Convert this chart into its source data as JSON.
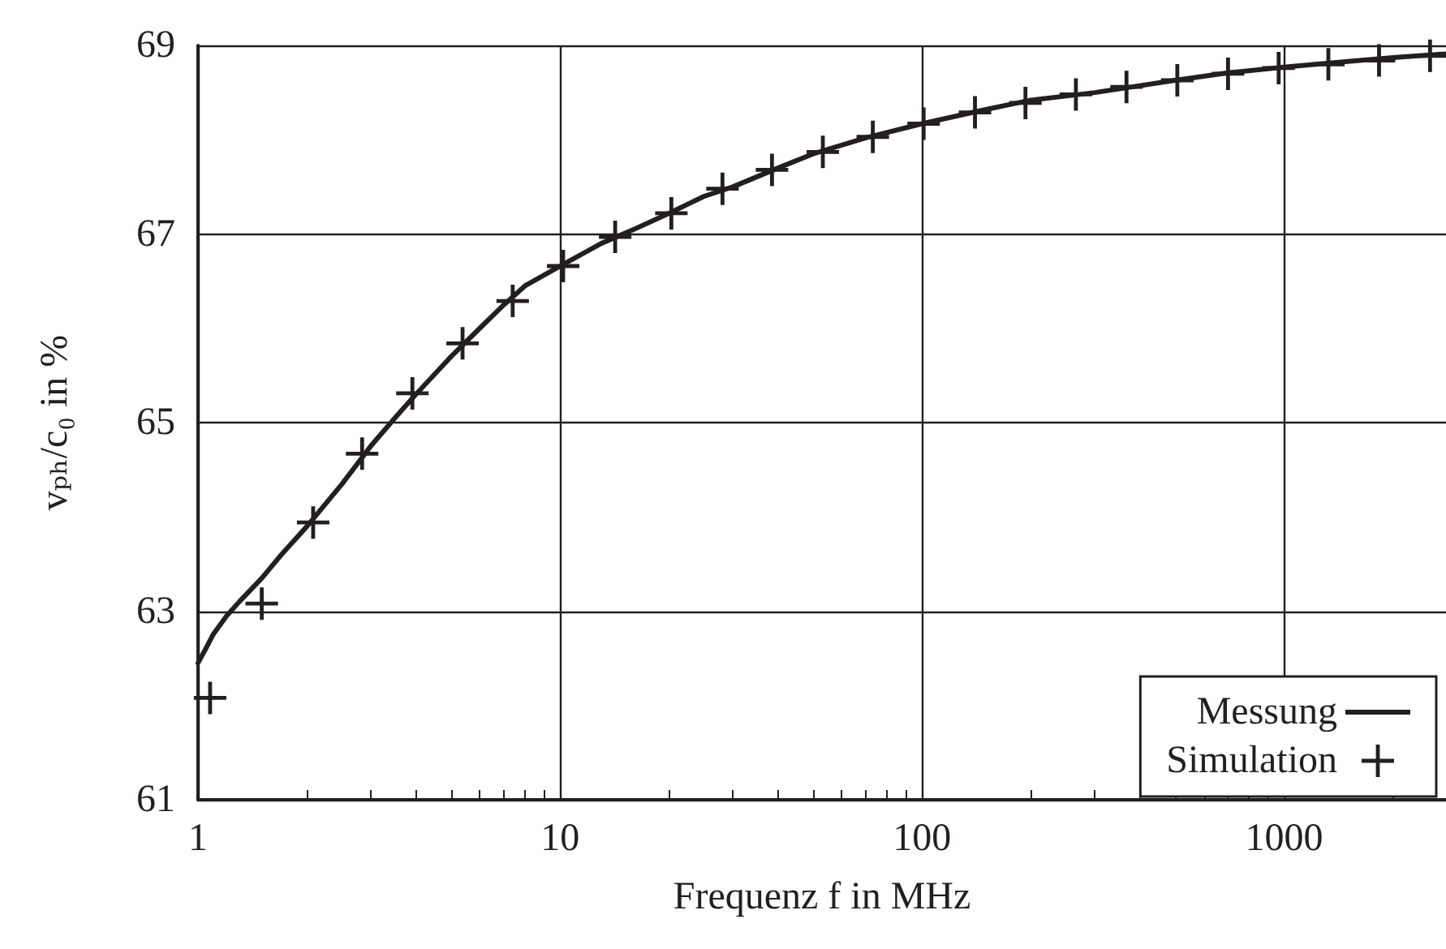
{
  "chart_data": {
    "type": "line",
    "xlabel": "Frequenz f in MHz",
    "ylabel": "vₚₕ/c₀ in %",
    "log": "x",
    "xlim": [
      1,
      2800
    ],
    "xticks": [
      1,
      10,
      100,
      1000
    ],
    "ylim": [
      61,
      69
    ],
    "yticks": [
      61,
      63,
      65,
      67,
      69
    ],
    "grid": true,
    "legend": "bottom right",
    "series": [
      {
        "name": "Messung",
        "color": "#231f20",
        "marker": "none",
        "line_style": "solid",
        "x": [
          1,
          1.05,
          1.1,
          1.2,
          1.3,
          1.5,
          1.7,
          2,
          2.5,
          3,
          3.5,
          4,
          5,
          6,
          7,
          8,
          10,
          13,
          16,
          20,
          25,
          30,
          40,
          50,
          70,
          100,
          150,
          200,
          300,
          500,
          700,
          1000,
          1500,
          2000,
          2800
        ],
        "values": [
          62.45,
          62.6,
          62.75,
          62.95,
          63.1,
          63.35,
          63.6,
          63.9,
          64.35,
          64.75,
          65.05,
          65.3,
          65.7,
          66.0,
          66.25,
          66.45,
          66.66,
          66.9,
          67.05,
          67.22,
          67.4,
          67.5,
          67.7,
          67.85,
          68.02,
          68.17,
          68.32,
          68.42,
          68.5,
          68.63,
          68.71,
          68.77,
          68.83,
          68.87,
          68.91
        ]
      },
      {
        "name": "Simulation",
        "type": "scatter",
        "color": "#231f20",
        "marker": "cross",
        "x": [
          1.08,
          1.5,
          2.08,
          2.84,
          3.91,
          5.38,
          7.4,
          10.2,
          14.2,
          20.3,
          28.1,
          38.5,
          53.2,
          73.1,
          101,
          140,
          193,
          266,
          367,
          507,
          700,
          966,
          1325,
          1829,
          2530
        ],
        "values": [
          62.08,
          63.08,
          63.94,
          64.67,
          65.31,
          65.84,
          66.29,
          66.66,
          66.97,
          67.22,
          67.48,
          67.68,
          67.87,
          68.03,
          68.17,
          68.29,
          68.39,
          68.48,
          68.56,
          68.63,
          68.7,
          68.76,
          68.8,
          68.84,
          68.89
        ]
      }
    ]
  }
}
